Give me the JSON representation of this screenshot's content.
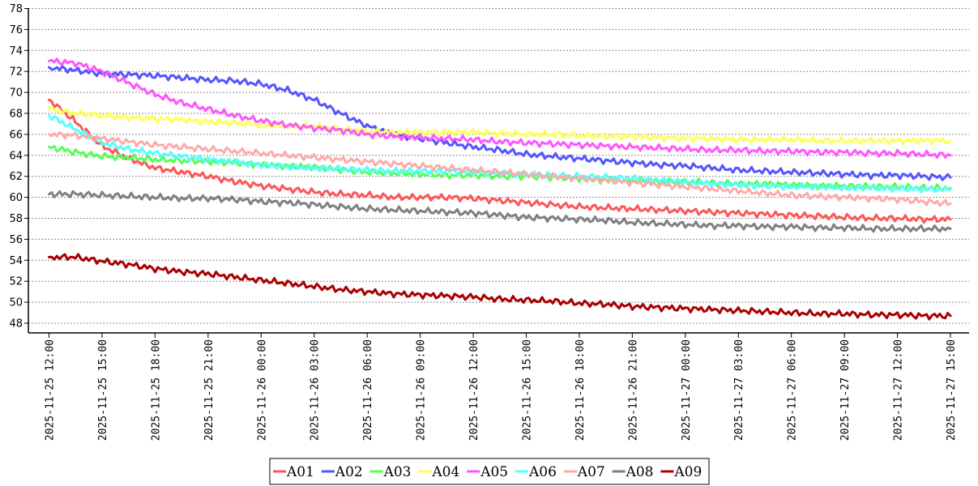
{
  "chart_data": {
    "type": "line",
    "title": "",
    "xlabel": "",
    "ylabel": "",
    "ylim": [
      47,
      78
    ],
    "xlim": [
      "2025-11-25 11:30",
      "2025-11-27 15:30"
    ],
    "y_ticks": [
      48,
      50,
      52,
      54,
      56,
      58,
      60,
      62,
      64,
      66,
      68,
      70,
      72,
      74,
      76,
      78
    ],
    "x_ticks": [
      "2025-11-25 12:00",
      "2025-11-25 15:00",
      "2025-11-25 18:00",
      "2025-11-25 21:00",
      "2025-11-26 00:00",
      "2025-11-26 03:00",
      "2025-11-26 06:00",
      "2025-11-26 09:00",
      "2025-11-26 12:00",
      "2025-11-26 15:00",
      "2025-11-26 18:00",
      "2025-11-26 21:00",
      "2025-11-27 00:00",
      "2025-11-27 03:00",
      "2025-11-27 06:00",
      "2025-11-27 09:00",
      "2025-11-27 12:00",
      "2025-11-27 15:00"
    ],
    "grid": true,
    "legend_position": "bottom-center",
    "x": [
      "2025-11-25 12:00",
      "2025-11-25 13:30",
      "2025-11-25 15:00",
      "2025-11-25 16:30",
      "2025-11-25 18:00",
      "2025-11-25 19:30",
      "2025-11-25 21:00",
      "2025-11-25 22:30",
      "2025-11-26 00:00",
      "2025-11-26 01:30",
      "2025-11-26 03:00",
      "2025-11-26 04:30",
      "2025-11-26 06:00",
      "2025-11-26 07:30",
      "2025-11-26 09:00",
      "2025-11-26 10:30",
      "2025-11-26 12:00",
      "2025-11-26 13:30",
      "2025-11-26 15:00",
      "2025-11-26 16:30",
      "2025-11-26 18:00",
      "2025-11-26 19:30",
      "2025-11-26 21:00",
      "2025-11-26 22:30",
      "2025-11-27 00:00",
      "2025-11-27 01:30",
      "2025-11-27 03:00",
      "2025-11-27 04:30",
      "2025-11-27 06:00",
      "2025-11-27 07:30",
      "2025-11-27 09:00",
      "2025-11-27 10:30",
      "2025-11-27 12:00",
      "2025-11-27 13:30",
      "2025-11-27 15:00"
    ],
    "series": [
      {
        "name": "A01",
        "color": "#ff5555",
        "values": [
          69.3,
          67.2,
          64.9,
          63.7,
          62.8,
          62.4,
          62.0,
          61.5,
          61.1,
          60.8,
          60.5,
          60.3,
          60.2,
          60.0,
          60.0,
          60.0,
          59.9,
          59.7,
          59.5,
          59.3,
          59.1,
          59.0,
          58.9,
          58.8,
          58.7,
          58.6,
          58.5,
          58.4,
          58.3,
          58.2,
          58.1,
          58.0,
          58.0,
          57.9,
          57.9
        ]
      },
      {
        "name": "A02",
        "color": "#5555ff",
        "values": [
          72.4,
          72.1,
          71.8,
          71.7,
          71.6,
          71.4,
          71.2,
          71.1,
          70.8,
          70.2,
          69.3,
          68.0,
          66.8,
          66.0,
          65.6,
          65.2,
          64.8,
          64.5,
          64.1,
          63.9,
          63.7,
          63.5,
          63.3,
          63.1,
          63.0,
          62.8,
          62.6,
          62.5,
          62.4,
          62.3,
          62.2,
          62.1,
          62.1,
          62.0,
          61.9
        ]
      },
      {
        "name": "A03",
        "color": "#55ff55",
        "values": [
          64.8,
          64.3,
          63.9,
          63.8,
          63.6,
          63.5,
          63.4,
          63.3,
          63.1,
          63.0,
          62.9,
          62.6,
          62.4,
          62.3,
          62.2,
          62.1,
          62.1,
          62.0,
          62.0,
          61.9,
          61.8,
          61.7,
          61.6,
          61.5,
          61.5,
          61.4,
          61.3,
          61.3,
          61.2,
          61.1,
          61.1,
          61.0,
          61.0,
          60.9,
          60.9
        ]
      },
      {
        "name": "A04",
        "color": "#ffff55",
        "values": [
          68.4,
          68.0,
          67.8,
          67.6,
          67.5,
          67.4,
          67.2,
          67.1,
          66.9,
          66.8,
          66.8,
          66.5,
          66.3,
          66.2,
          66.2,
          66.2,
          66.2,
          66.1,
          66.0,
          66.0,
          65.9,
          65.8,
          65.8,
          65.7,
          65.6,
          65.6,
          65.5,
          65.5,
          65.5,
          65.4,
          65.4,
          65.4,
          65.4,
          65.4,
          65.4
        ]
      },
      {
        "name": "A05",
        "color": "#ff55ff",
        "values": [
          73.0,
          72.8,
          72.0,
          70.9,
          69.8,
          69.0,
          68.4,
          67.8,
          67.3,
          66.9,
          66.6,
          66.4,
          66.0,
          65.8,
          65.7,
          65.6,
          65.5,
          65.3,
          65.2,
          65.1,
          65.0,
          64.9,
          64.8,
          64.7,
          64.6,
          64.5,
          64.5,
          64.4,
          64.4,
          64.3,
          64.3,
          64.2,
          64.2,
          64.1,
          64.0
        ]
      },
      {
        "name": "A06",
        "color": "#55ffff",
        "values": [
          67.8,
          66.5,
          65.2,
          64.6,
          64.2,
          63.9,
          63.6,
          63.4,
          63.1,
          62.9,
          62.8,
          62.7,
          62.6,
          62.5,
          62.5,
          62.5,
          62.4,
          62.3,
          62.2,
          62.1,
          62.0,
          61.9,
          61.8,
          61.6,
          61.5,
          61.3,
          61.2,
          61.1,
          61.0,
          61.0,
          60.9,
          60.9,
          60.8,
          60.8,
          60.7
        ]
      },
      {
        "name": "A07",
        "color": "#ffaaaa",
        "values": [
          66.0,
          65.9,
          65.6,
          65.3,
          65.0,
          64.8,
          64.6,
          64.4,
          64.2,
          64.0,
          63.8,
          63.6,
          63.4,
          63.2,
          63.0,
          62.8,
          62.6,
          62.4,
          62.2,
          62.0,
          61.8,
          61.6,
          61.4,
          61.2,
          61.0,
          60.8,
          60.6,
          60.4,
          60.2,
          60.1,
          60.0,
          59.9,
          59.8,
          59.6,
          59.4
        ]
      },
      {
        "name": "A08",
        "color": "#808080",
        "values": [
          60.3,
          60.3,
          60.2,
          60.1,
          60.0,
          59.9,
          59.9,
          59.8,
          59.6,
          59.5,
          59.3,
          59.1,
          58.9,
          58.8,
          58.7,
          58.6,
          58.5,
          58.3,
          58.1,
          58.0,
          57.9,
          57.8,
          57.6,
          57.5,
          57.4,
          57.3,
          57.3,
          57.2,
          57.2,
          57.1,
          57.1,
          57.0,
          57.0,
          57.0,
          57.0
        ]
      },
      {
        "name": "A09",
        "color": "#aa0000",
        "values": [
          54.3,
          54.3,
          53.9,
          53.6,
          53.2,
          52.9,
          52.7,
          52.4,
          52.1,
          51.8,
          51.5,
          51.2,
          51.0,
          50.8,
          50.7,
          50.6,
          50.5,
          50.3,
          50.2,
          50.1,
          49.9,
          49.8,
          49.6,
          49.5,
          49.4,
          49.3,
          49.2,
          49.1,
          49.0,
          48.9,
          48.9,
          48.8,
          48.8,
          48.7,
          48.7
        ]
      }
    ]
  }
}
